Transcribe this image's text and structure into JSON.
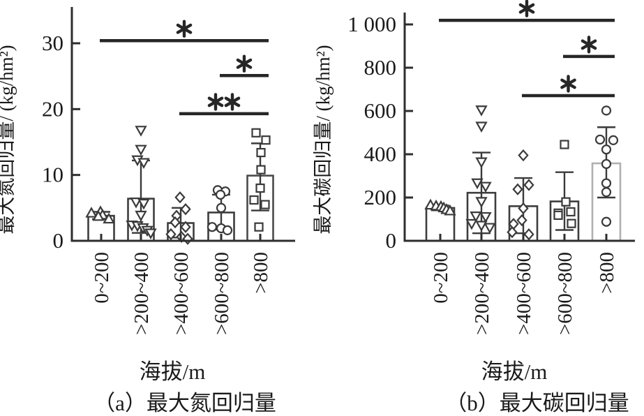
{
  "colors": {
    "axis": "#2e2e2e",
    "text": "#1a1a1a",
    "marker": "#3a3a3a",
    "significance": "#262626",
    "bar_fill": "#ffffff"
  },
  "chart_data": [
    {
      "id": "a",
      "type": "bar",
      "caption": "（a）最大氮回归量",
      "xlabel": "海拔/m",
      "ylabel": "最大氮回归量/ (kg/hm²)",
      "categories": [
        "0~200",
        ">200~400",
        ">400~600",
        ">600~800",
        ">800"
      ],
      "ylim": [
        0,
        33
      ],
      "ytick_values": [
        0,
        10,
        20,
        30
      ],
      "ytick_labels": [
        "0",
        "10",
        "20",
        "30"
      ],
      "marker_shapes": [
        "triangle-up",
        "triangle-down",
        "diamond",
        "circle",
        "square"
      ],
      "bar_means": [
        3.8,
        6.4,
        2.7,
        4.3,
        9.9
      ],
      "error_bars": [
        [
          3.3,
          4.4
        ],
        [
          1.2,
          12.2
        ],
        [
          0.5,
          5.0
        ],
        [
          1.7,
          7.0
        ],
        [
          4.6,
          14.8
        ]
      ],
      "points": [
        [
          [
            4.4,
            -1
          ],
          [
            4.2,
            -14
          ],
          [
            3.9,
            2
          ],
          [
            3.7,
            -4
          ],
          [
            3.3,
            11
          ]
        ],
        [
          [
            16.8,
            0
          ],
          [
            13.9,
            0
          ],
          [
            12.3,
            -5
          ],
          [
            11.9,
            4
          ],
          [
            5.9,
            -7
          ],
          [
            5.7,
            4
          ],
          [
            3.9,
            0
          ],
          [
            2.4,
            -13
          ],
          [
            2.3,
            -5
          ],
          [
            2.0,
            3
          ],
          [
            1.6,
            9
          ],
          [
            1.2,
            14
          ]
        ],
        [
          [
            6.6,
            -1
          ],
          [
            4.8,
            7
          ],
          [
            3.8,
            -6
          ],
          [
            2.8,
            -8
          ],
          [
            2.1,
            7
          ],
          [
            1.0,
            -14
          ],
          [
            0.6,
            1
          ],
          [
            0.3,
            10
          ]
        ],
        [
          [
            7.7,
            -5
          ],
          [
            7.5,
            6
          ],
          [
            7.0,
            -1
          ],
          [
            5.0,
            0
          ],
          [
            2.1,
            -13
          ],
          [
            1.9,
            0
          ],
          [
            1.6,
            9
          ]
        ],
        [
          [
            16.4,
            -6
          ],
          [
            15.3,
            8
          ],
          [
            13.4,
            1
          ],
          [
            10.8,
            1
          ],
          [
            8.0,
            0
          ],
          [
            6.2,
            -9
          ],
          [
            5.5,
            7
          ],
          [
            2.1,
            -2
          ]
        ]
      ],
      "significance": [
        {
          "from": 0,
          "to": 4,
          "value": 30.4,
          "label": "*"
        },
        {
          "from": 3,
          "to": 4,
          "value": 25.1,
          "label": "*"
        },
        {
          "from": 2,
          "to": 4,
          "value": 19.3,
          "label": "**"
        }
      ],
      "bar_stroke_colors": [
        "#3d3d3d",
        "#3d3d3d",
        "#3d3d3d",
        "#3d3d3d",
        "#4a4a4a"
      ]
    },
    {
      "id": "b",
      "type": "bar",
      "caption": "（b）最大碳回归量",
      "xlabel": "海拔/m",
      "ylabel": "最大碳回归量/ (kg/hm²)",
      "categories": [
        "0~200",
        ">200~400",
        ">400~600",
        ">600~800",
        ">800"
      ],
      "ylim": [
        0,
        1050
      ],
      "ytick_values": [
        0,
        200,
        400,
        600,
        800,
        1000
      ],
      "ytick_labels": [
        "0",
        "200",
        "400",
        "600",
        "800",
        "1 000"
      ],
      "marker_shapes": [
        "triangle-up",
        "triangle-down",
        "diamond",
        "square",
        "circle"
      ],
      "bar_means": [
        152,
        222,
        160,
        182,
        358
      ],
      "error_bars": [
        [
          141,
          163
        ],
        [
          35,
          408
        ],
        [
          35,
          290
        ],
        [
          50,
          317
        ],
        [
          200,
          525
        ]
      ],
      "points": [
        [
          [
            165,
            -14
          ],
          [
            161,
            -6
          ],
          [
            158,
            1
          ],
          [
            152,
            5
          ],
          [
            144,
            9
          ],
          [
            138,
            14
          ]
        ],
        [
          [
            605,
            0
          ],
          [
            530,
            0
          ],
          [
            365,
            0
          ],
          [
            268,
            -6
          ],
          [
            252,
            6
          ],
          [
            182,
            0
          ],
          [
            115,
            -8
          ],
          [
            112,
            6
          ],
          [
            80,
            -14
          ],
          [
            72,
            0
          ],
          [
            62,
            12
          ]
        ],
        [
          [
            395,
            0
          ],
          [
            258,
            8
          ],
          [
            238,
            -8
          ],
          [
            150,
            0
          ],
          [
            95,
            -2
          ],
          [
            78,
            -14
          ],
          [
            40,
            -16
          ],
          [
            30,
            8
          ]
        ],
        [
          [
            445,
            0
          ],
          [
            180,
            2
          ],
          [
            134,
            9
          ],
          [
            128,
            -9
          ],
          [
            118,
            -9
          ],
          [
            80,
            10
          ]
        ],
        [
          [
            602,
            0
          ],
          [
            468,
            -9
          ],
          [
            465,
            10
          ],
          [
            422,
            0
          ],
          [
            355,
            0
          ],
          [
            266,
            0
          ],
          [
            225,
            0
          ],
          [
            88,
            0
          ]
        ]
      ],
      "significance": [
        {
          "from": 0,
          "to": 4,
          "value": 1019,
          "label": "*"
        },
        {
          "from": 3,
          "to": 4,
          "value": 852,
          "label": "*"
        },
        {
          "from": 2,
          "to": 4,
          "value": 671,
          "label": "*"
        }
      ],
      "bar_stroke_colors": [
        "#3d3d3d",
        "#3d3d3d",
        "#3d3d3d",
        "#3d3d3d",
        "#b0b0b0"
      ]
    }
  ]
}
